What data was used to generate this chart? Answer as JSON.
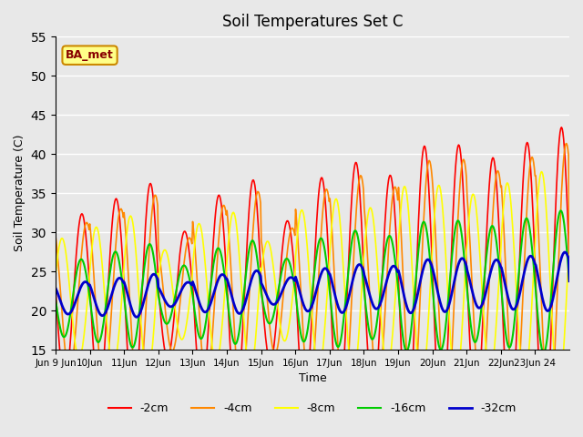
{
  "title": "Soil Temperatures Set C",
  "xlabel": "Time",
  "ylabel": "Soil Temperature (C)",
  "ylim": [
    15,
    55
  ],
  "background_color": "#e8e8e8",
  "plot_bg_color": "#e8e8e8",
  "grid_color": "#ffffff",
  "colors": {
    "-2cm": "#ff0000",
    "-4cm": "#ff8800",
    "-8cm": "#ffff00",
    "-16cm": "#00cc00",
    "-32cm": "#0000cc"
  },
  "lws": {
    "-2cm": 1.2,
    "-4cm": 1.2,
    "-8cm": 1.2,
    "-16cm": 1.5,
    "-32cm": 2.0
  },
  "xtick_labels": [
    "Jun 9 Jun",
    "10Jun",
    "11Jun",
    "12Jun",
    "13Jun",
    "14Jun",
    "15Jun",
    "16Jun",
    "17Jun",
    "18Jun",
    "19Jun",
    "20Jun",
    "21Jun",
    "22Jun",
    "23Jun 24"
  ],
  "annotation_text": "BA_met",
  "annotation_bg": "#ffff88",
  "annotation_border": "#cc8800",
  "peak_heights": [
    12,
    14,
    16,
    9,
    14,
    16,
    10,
    16,
    18,
    16,
    20,
    20,
    18,
    20,
    22
  ]
}
